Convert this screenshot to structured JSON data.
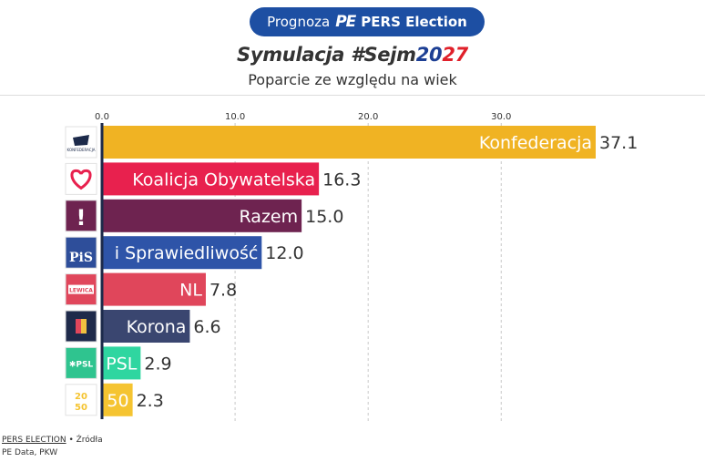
{
  "header": {
    "prefix": "Prognoza",
    "logo_text": "PE",
    "brand": "PERS Election",
    "title_part1": "Symulacja #Sejm",
    "title_year_a": "20",
    "title_year_b": "27",
    "subtitle": "Poparcie ze względu na wiek"
  },
  "footer": {
    "source_name": "PERS ELECTION",
    "separator": " • Źródła",
    "sources": "PE Data, PKW"
  },
  "chart_data": {
    "type": "bar",
    "orientation": "horizontal",
    "xlim": [
      0,
      37.1
    ],
    "ticks": [
      0,
      10,
      20,
      30
    ],
    "tick_labels": [
      "0.0",
      "10.0",
      "20.0",
      "30.0"
    ],
    "grid": true,
    "bars": [
      {
        "label": "Konfederacja",
        "value": 37.1,
        "value_label": "37.1",
        "color": "#f0b323",
        "logo": "konfederacja-logo",
        "logo_text": "KONFEDERACJA"
      },
      {
        "label": "Koalicja Obywatelska",
        "value": 16.3,
        "value_label": "16.3",
        "color": "#e8214e",
        "logo": "heart-logo",
        "logo_text": ""
      },
      {
        "label": "Razem",
        "value": 15.0,
        "value_label": "15.0",
        "color": "#6e2350",
        "logo": "exclamation-logo",
        "logo_text": "!"
      },
      {
        "label": "i Sprawiedliwość",
        "value": 12.0,
        "value_label": "12.0",
        "color": "#2e54a8",
        "logo": "pis-logo",
        "logo_text": "PiS"
      },
      {
        "label": "NL",
        "value": 7.8,
        "value_label": "7.8",
        "color": "#e0465b",
        "logo": "lewica-logo",
        "logo_text": "LEWICA"
      },
      {
        "label": "Korona",
        "value": 6.6,
        "value_label": "6.6",
        "color": "#3a4670",
        "logo": "korona-logo",
        "logo_text": ""
      },
      {
        "label": "PSL",
        "value": 2.9,
        "value_label": "2.9",
        "color": "#2fd6a0",
        "logo": "psl-logo",
        "logo_text": "PSL"
      },
      {
        "label": "50",
        "value": 2.3,
        "value_label": "2.3",
        "color": "#f5c431",
        "logo": "2050-logo",
        "logo_text": "2050"
      }
    ]
  }
}
